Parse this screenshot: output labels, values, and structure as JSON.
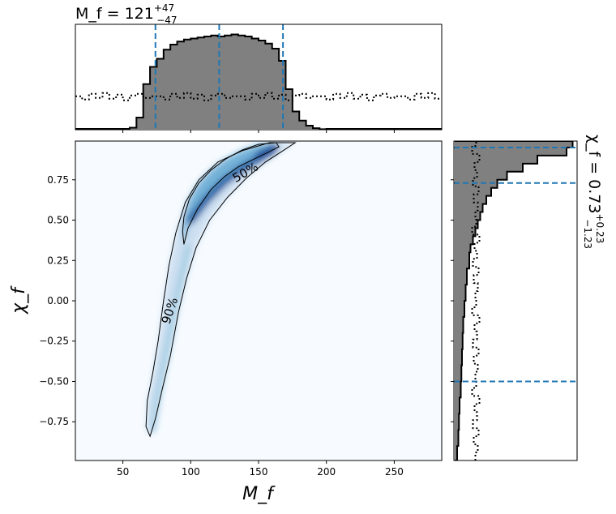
{
  "chart_data": {
    "type": "heatmap",
    "subtype": "corner-plot (joint density with marginal histograms)",
    "main": {
      "xlabel": "M_f",
      "ylabel": "χ_f",
      "xlim": [
        15,
        285
      ],
      "ylim": [
        -0.99,
        0.99
      ],
      "xticks": [
        50,
        100,
        150,
        200,
        250
      ],
      "yticks": [
        -0.75,
        -0.5,
        -0.25,
        0.0,
        0.25,
        0.5,
        0.75
      ],
      "xtick_labels": [
        "50",
        "100",
        "150",
        "200",
        "250"
      ],
      "ytick_labels": [
        "−0.75",
        "−0.50",
        "−0.25",
        "0.00",
        "0.25",
        "0.50",
        "0.75"
      ],
      "colormap": "Blues",
      "contours": [
        {
          "label": "50%",
          "label_at": [
            140,
            0.8
          ],
          "path": [
            [
              95,
              0.35
            ],
            [
              98,
              0.45
            ],
            [
              105,
              0.57
            ],
            [
              115,
              0.69
            ],
            [
              125,
              0.77
            ],
            [
              135,
              0.83
            ],
            [
              147,
              0.88
            ],
            [
              157,
              0.92
            ],
            [
              165,
              0.955
            ],
            [
              163,
              0.98
            ],
            [
              150,
              0.97
            ],
            [
              138,
              0.935
            ],
            [
              126,
              0.88
            ],
            [
              115,
              0.81
            ],
            [
              106,
              0.73
            ],
            [
              99,
              0.63
            ],
            [
              95,
              0.52
            ],
            [
              94,
              0.43
            ],
            [
              95,
              0.35
            ]
          ]
        },
        {
          "label": "90%",
          "label_at": [
            84,
            -0.06
          ],
          "path": [
            [
              70,
              -0.84
            ],
            [
              74,
              -0.73
            ],
            [
              79,
              -0.55
            ],
            [
              85,
              -0.34
            ],
            [
              91,
              -0.07
            ],
            [
              97,
              0.14
            ],
            [
              104,
              0.33
            ],
            [
              114,
              0.5
            ],
            [
              127,
              0.64
            ],
            [
              141,
              0.76
            ],
            [
              155,
              0.86
            ],
            [
              168,
              0.93
            ],
            [
              177,
              0.98
            ],
            [
              158,
              0.98
            ],
            [
              138,
              0.93
            ],
            [
              120,
              0.86
            ],
            [
              106,
              0.75
            ],
            [
              96,
              0.61
            ],
            [
              89,
              0.42
            ],
            [
              84,
              0.22
            ],
            [
              80,
              0.0
            ],
            [
              76,
              -0.25
            ],
            [
              72,
              -0.45
            ],
            [
              68,
              -0.62
            ],
            [
              67,
              -0.78
            ],
            [
              70,
              -0.84
            ]
          ]
        }
      ]
    },
    "top_marginal": {
      "title": "M_f = 121 +47 −47",
      "title_main": "M_f = 121",
      "title_sup": "+47",
      "title_sub": "−47",
      "xlim": [
        15,
        285
      ],
      "quantile_lines": [
        74,
        121,
        168
      ],
      "line_color": "#1f77b4",
      "fill_color": "#808080",
      "posterior_edges": [
        55,
        60,
        65,
        70,
        75,
        80,
        85,
        90,
        95,
        100,
        105,
        110,
        115,
        120,
        125,
        130,
        135,
        140,
        145,
        150,
        155,
        160,
        165,
        170,
        175,
        180,
        185,
        190,
        195,
        200
      ],
      "posterior_values": [
        0.02,
        0.12,
        0.45,
        0.62,
        0.7,
        0.79,
        0.84,
        0.87,
        0.89,
        0.9,
        0.91,
        0.92,
        0.93,
        0.92,
        0.93,
        0.94,
        0.93,
        0.92,
        0.9,
        0.88,
        0.85,
        0.8,
        0.68,
        0.4,
        0.18,
        0.09,
        0.04,
        0.015,
        0.005
      ],
      "prior_level": 0.33
    },
    "right_marginal": {
      "title": "χ_f = 0.73 +0.23 −1.23",
      "title_main": "χ_f = 0.73",
      "title_sup": "+0.23",
      "title_sub": "−1.23",
      "ylim": [
        -0.99,
        0.99
      ],
      "quantile_lines": [
        -0.5,
        0.73,
        0.95
      ],
      "line_color": "#1f77b4",
      "fill_color": "#808080",
      "posterior_edges": [
        -0.99,
        -0.9,
        -0.8,
        -0.7,
        -0.6,
        -0.5,
        -0.4,
        -0.3,
        -0.2,
        -0.1,
        0.0,
        0.1,
        0.2,
        0.3,
        0.35,
        0.4,
        0.45,
        0.5,
        0.55,
        0.6,
        0.65,
        0.7,
        0.75,
        0.8,
        0.85,
        0.9,
        0.95,
        0.99
      ],
      "posterior_values": [
        0.02,
        0.03,
        0.035,
        0.04,
        0.05,
        0.055,
        0.06,
        0.065,
        0.07,
        0.08,
        0.09,
        0.1,
        0.12,
        0.13,
        0.15,
        0.17,
        0.19,
        0.21,
        0.23,
        0.26,
        0.3,
        0.35,
        0.43,
        0.56,
        0.68,
        0.92,
        0.97
      ],
      "prior_level": 0.17
    }
  }
}
